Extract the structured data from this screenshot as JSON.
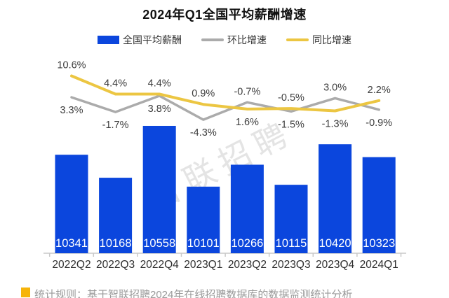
{
  "title": "2024年Q1全国平均薪酬增速",
  "legend": {
    "items": [
      {
        "label": "全国平均薪酬",
        "type": "bar",
        "color": "#0b46dd"
      },
      {
        "label": "环比增速",
        "type": "line",
        "color": "#ababab"
      },
      {
        "label": "同比增速",
        "type": "line",
        "color": "#ecc642"
      }
    ]
  },
  "chart_data": {
    "type": "bar",
    "subtype": "bar + line combo",
    "title": "2024年Q1全国平均薪酬增速",
    "categories": [
      "2022Q2",
      "2022Q3",
      "2022Q4",
      "2023Q1",
      "2023Q2",
      "2023Q3",
      "2023Q4",
      "2024Q1"
    ],
    "series": [
      {
        "name": "全国平均薪酬",
        "type": "bar",
        "unit": "元",
        "color": "#0b46dd",
        "values": [
          10341,
          10168,
          10558,
          10101,
          10266,
          10115,
          10420,
          10323
        ]
      },
      {
        "name": "环比增速",
        "type": "line",
        "unit": "%",
        "color": "#ababab",
        "values": [
          3.3,
          -1.7,
          3.8,
          -4.3,
          1.6,
          -1.5,
          3.0,
          -0.9
        ]
      },
      {
        "name": "同比增速",
        "type": "line",
        "unit": "%",
        "color": "#ecc642",
        "values": [
          10.6,
          4.4,
          4.4,
          0.9,
          -0.7,
          -0.5,
          -1.3,
          2.2
        ]
      }
    ],
    "bar_value_labels": [
      "10341",
      "10168",
      "10558",
      "10101",
      "10266",
      "10115",
      "10420",
      "10323"
    ],
    "point_labels": {
      "top": [
        "10.6%",
        "4.4%",
        "4.4%",
        "0.9%",
        "-0.7%",
        "-0.5%",
        "3.0%",
        "2.2%"
      ],
      "bottom": [
        "3.3%",
        "-1.7%",
        "3.8%",
        "-4.3%",
        "1.6%",
        "-1.5%",
        "-1.3%",
        "-0.9%"
      ]
    },
    "bar_axis_range": [
      9600,
      10700
    ],
    "grid": false,
    "legend_position": "top"
  },
  "watermark": "智联招聘",
  "footer": {
    "bullet_color": "#f6b40a",
    "text": "统计规则：基于智联招聘2024年在线招聘数据库的数据监测统计分析"
  }
}
